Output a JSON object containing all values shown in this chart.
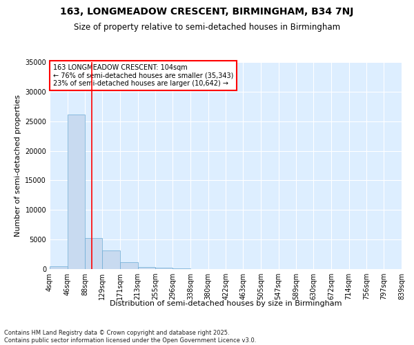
{
  "title": "163, LONGMEADOW CRESCENT, BIRMINGHAM, B34 7NJ",
  "subtitle": "Size of property relative to semi-detached houses in Birmingham",
  "xlabel": "Distribution of semi-detached houses by size in Birmingham",
  "ylabel": "Number of semi-detached properties",
  "annotation_title": "163 LONGMEADOW CRESCENT: 104sqm",
  "annotation_line1": "← 76% of semi-detached houses are smaller (35,343)",
  "annotation_line2": "23% of semi-detached houses are larger (10,642) →",
  "footer_line1": "Contains HM Land Registry data © Crown copyright and database right 2025.",
  "footer_line2": "Contains public sector information licensed under the Open Government Licence v3.0.",
  "bin_edges": [
    4,
    46,
    88,
    129,
    171,
    213,
    255,
    296,
    338,
    380,
    422,
    463,
    505,
    547,
    589,
    630,
    672,
    714,
    756,
    797,
    839
  ],
  "bar_heights": [
    490,
    26100,
    5300,
    3200,
    1200,
    400,
    180,
    60,
    20,
    10,
    5,
    3,
    2,
    1,
    0,
    0,
    0,
    0,
    0,
    0
  ],
  "bar_color": "#c8daf0",
  "bar_edge_color": "#6aaad4",
  "property_line_x": 104,
  "property_line_color": "red",
  "ylim": [
    0,
    35000
  ],
  "yticks": [
    0,
    5000,
    10000,
    15000,
    20000,
    25000,
    30000,
    35000
  ],
  "plot_bg_color": "#ddeeff",
  "fig_bg_color": "#ffffff",
  "annotation_box_color": "white",
  "annotation_box_edge": "red",
  "grid_color": "white",
  "title_fontsize": 10,
  "subtitle_fontsize": 8.5,
  "axis_label_fontsize": 8,
  "tick_fontsize": 7,
  "annotation_fontsize": 7,
  "footer_fontsize": 6
}
